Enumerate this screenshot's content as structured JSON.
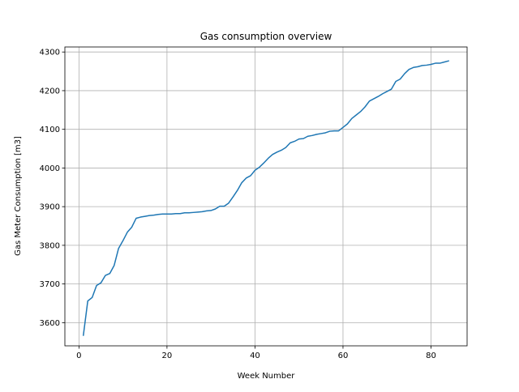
{
  "chart_data": {
    "type": "line",
    "title": "Gas consumption overview",
    "xlabel": "Week Number",
    "ylabel": "Gas Meter Consumption [m3]",
    "xlim": [
      -3.2,
      88.2
    ],
    "ylim": [
      3540,
      4313
    ],
    "xticks": [
      0,
      20,
      40,
      60,
      80
    ],
    "yticks": [
      3600,
      3700,
      3800,
      3900,
      4000,
      4100,
      4200,
      4300
    ],
    "grid": true,
    "line_color": "#1f77b4",
    "series": [
      {
        "x": [
          1,
          2,
          3,
          4,
          5,
          6,
          7,
          8,
          9,
          10,
          11,
          12,
          13,
          14,
          15,
          16,
          17,
          18,
          19,
          20,
          21,
          22,
          23,
          24,
          25,
          26,
          27,
          28,
          29,
          30,
          31,
          32,
          33,
          34,
          35,
          36,
          37,
          38,
          39,
          40,
          41,
          42,
          43,
          44,
          45,
          46,
          47,
          48,
          49,
          50,
          51,
          52,
          53,
          54,
          55,
          56,
          57,
          58,
          59,
          60,
          61,
          62,
          63,
          64,
          65,
          66,
          67,
          68,
          69,
          70,
          71,
          72,
          73,
          74,
          75,
          76,
          77,
          78,
          79,
          80,
          81,
          82,
          83,
          84
        ],
        "y": [
          3567,
          3656,
          3665,
          3696,
          3703,
          3722,
          3727,
          3748,
          3792,
          3812,
          3834,
          3847,
          3870,
          3873,
          3875,
          3877,
          3878,
          3880,
          3881,
          3881,
          3881,
          3882,
          3882,
          3884,
          3884,
          3885,
          3886,
          3887,
          3889,
          3890,
          3894,
          3901,
          3901,
          3909,
          3925,
          3942,
          3962,
          3974,
          3980,
          3994,
          4002,
          4013,
          4025,
          4035,
          4041,
          4046,
          4053,
          4065,
          4069,
          4075,
          4076,
          4082,
          4084,
          4087,
          4089,
          4091,
          4095,
          4096,
          4096,
          4105,
          4114,
          4128,
          4137,
          4146,
          4158,
          4173,
          4179,
          4185,
          4192,
          4198,
          4204,
          4224,
          4230,
          4244,
          4255,
          4260,
          4262,
          4265,
          4266,
          4268,
          4271,
          4271,
          4274,
          4277
        ]
      }
    ]
  }
}
